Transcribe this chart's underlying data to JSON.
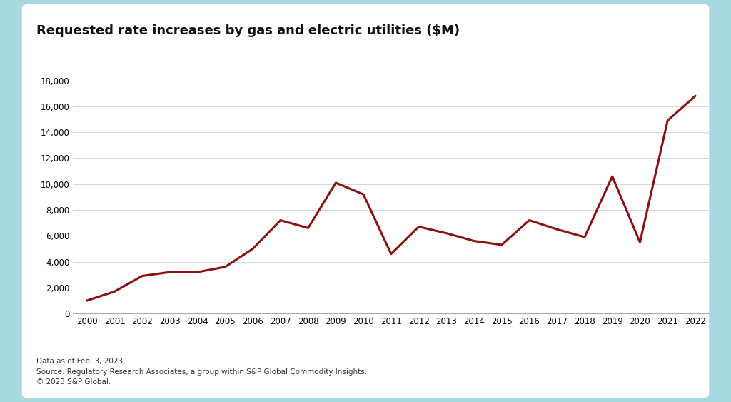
{
  "title": "Requested rate increases by gas and electric utilities ($M)",
  "years": [
    2000,
    2001,
    2002,
    2003,
    2004,
    2005,
    2006,
    2007,
    2008,
    2009,
    2010,
    2011,
    2012,
    2013,
    2014,
    2015,
    2016,
    2017,
    2018,
    2019,
    2020,
    2021,
    2022
  ],
  "values": [
    1000,
    1700,
    2900,
    3200,
    3200,
    3600,
    5000,
    7200,
    6600,
    10100,
    9200,
    4600,
    6700,
    6200,
    5600,
    5300,
    7200,
    6500,
    5900,
    10600,
    5500,
    14900,
    16800
  ],
  "line_color": "#8B1010",
  "line_width": 2.2,
  "ylim": [
    0,
    18000
  ],
  "yticks": [
    0,
    2000,
    4000,
    6000,
    8000,
    10000,
    12000,
    14000,
    16000,
    18000
  ],
  "background_color": "#ffffff",
  "outer_background": "#a8d8e0",
  "title_fontsize": 13,
  "footnote_lines": [
    "Data as of Feb. 3, 2023.",
    "Source: Regulatory Research Associates, a group within S&P Global Commodity Insights.",
    "© 2023 S&P Global."
  ]
}
